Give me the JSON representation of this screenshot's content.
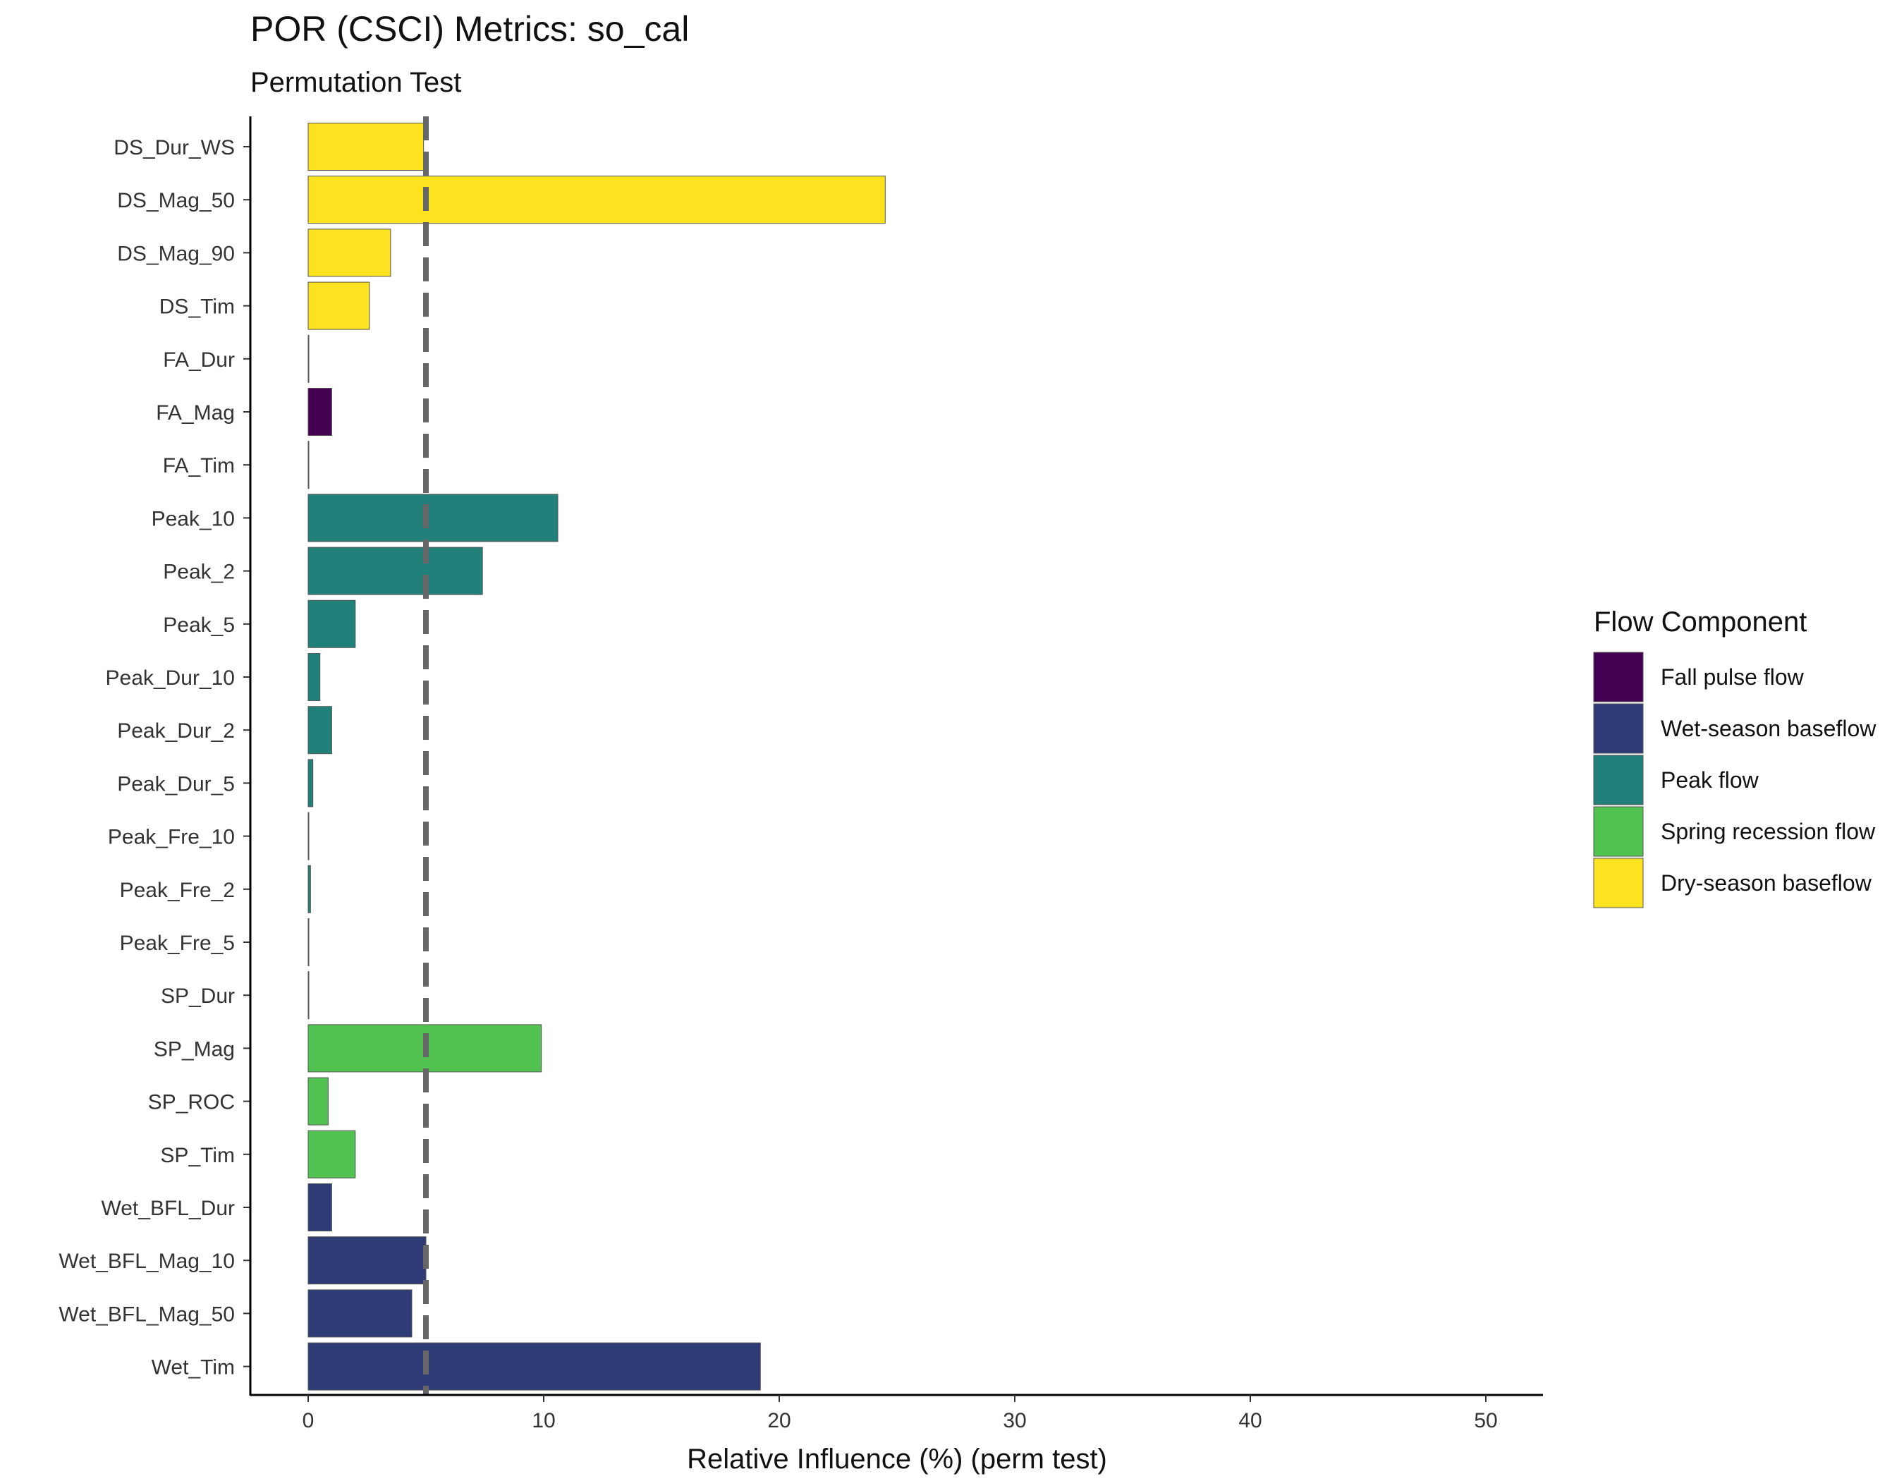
{
  "chart_data": {
    "type": "bar",
    "orientation": "horizontal",
    "title": "POR (CSCI) Metrics: so_cal",
    "subtitle": "Permutation Test",
    "xlabel": "Relative Influence (%) (perm test)",
    "ylabel": "",
    "xlim": [
      0,
      50
    ],
    "xticks": [
      0,
      10,
      20,
      30,
      40,
      50
    ],
    "grid": false,
    "reference_line": {
      "x": 5,
      "style": "dashed",
      "color": "#666666"
    },
    "legend": {
      "title": "Flow Component",
      "placement": "right",
      "entries": [
        {
          "label": "Fall pulse flow",
          "color": "#440154"
        },
        {
          "label": "Wet-season baseflow",
          "color": "#2E3B77"
        },
        {
          "label": "Peak flow",
          "color": "#21817A"
        },
        {
          "label": "Spring recession flow",
          "color": "#51C14F"
        },
        {
          "label": "Dry-season baseflow",
          "color": "#FDE21F"
        }
      ]
    },
    "categories": [
      "DS_Dur_WS",
      "DS_Mag_50",
      "DS_Mag_90",
      "DS_Tim",
      "FA_Dur",
      "FA_Mag",
      "FA_Tim",
      "Peak_10",
      "Peak_2",
      "Peak_5",
      "Peak_Dur_10",
      "Peak_Dur_2",
      "Peak_Dur_5",
      "Peak_Fre_10",
      "Peak_Fre_2",
      "Peak_Fre_5",
      "SP_Dur",
      "SP_Mag",
      "SP_ROC",
      "SP_Tim",
      "Wet_BFL_Dur",
      "Wet_BFL_Mag_10",
      "Wet_BFL_Mag_50",
      "Wet_Tim"
    ],
    "values": [
      4.9,
      24.5,
      3.5,
      2.6,
      0,
      1.0,
      0,
      10.6,
      7.4,
      2.0,
      0.5,
      1.0,
      0.2,
      0,
      0.1,
      0,
      0,
      9.9,
      0.85,
      2.0,
      1.0,
      5.0,
      4.4,
      19.2
    ],
    "components": [
      "Dry-season baseflow",
      "Dry-season baseflow",
      "Dry-season baseflow",
      "Dry-season baseflow",
      "Fall pulse flow",
      "Fall pulse flow",
      "Fall pulse flow",
      "Peak flow",
      "Peak flow",
      "Peak flow",
      "Peak flow",
      "Peak flow",
      "Peak flow",
      "Peak flow",
      "Peak flow",
      "Peak flow",
      "Spring recession flow",
      "Spring recession flow",
      "Spring recession flow",
      "Spring recession flow",
      "Wet-season baseflow",
      "Wet-season baseflow",
      "Wet-season baseflow",
      "Wet-season baseflow"
    ]
  }
}
